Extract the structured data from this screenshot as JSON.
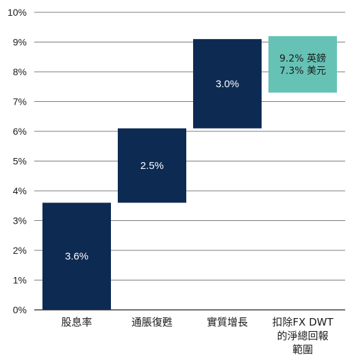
{
  "chart_data": {
    "type": "bar",
    "subtype": "waterfall",
    "title": "",
    "xlabel": "",
    "ylabel": "",
    "ylim": [
      0,
      10
    ],
    "yticks": [
      "0%",
      "1%",
      "2%",
      "3%",
      "4%",
      "5%",
      "6%",
      "7%",
      "8%",
      "9%",
      "10%"
    ],
    "grid": true,
    "categories": [
      [
        "股息率"
      ],
      [
        "通脹復甦"
      ],
      [
        "實質增長"
      ],
      [
        "扣除FX DWT",
        "的淨總回報",
        "範圍"
      ]
    ],
    "bars": [
      {
        "start": 0.0,
        "end": 3.6,
        "label": "3.6%"
      },
      {
        "start": 3.6,
        "end": 6.1,
        "label": "2.5%"
      },
      {
        "start": 6.1,
        "end": 9.1,
        "label": "3.0%"
      },
      {
        "start": 7.3,
        "end": 9.2,
        "labels": [
          "9.2% 英鎊",
          "7.3% 美元"
        ]
      }
    ],
    "colors": {
      "bar": "#0d2a52",
      "range_bar": "#66c2b5",
      "grid": "#4d4d4d",
      "baseline": "#1a1a1a"
    }
  }
}
